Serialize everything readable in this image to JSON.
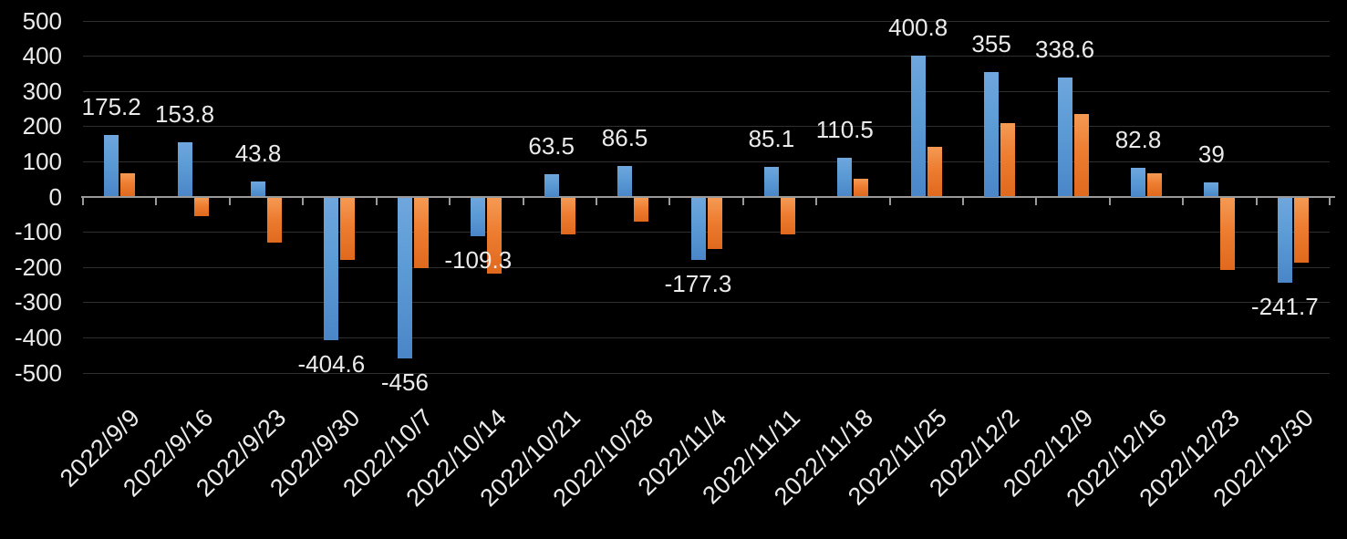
{
  "chart_data": {
    "type": "bar",
    "title": "",
    "xlabel": "",
    "ylabel": "",
    "categories": [
      "2022/9/9",
      "2022/9/16",
      "2022/9/23",
      "2022/9/30",
      "2022/10/7",
      "2022/10/14",
      "2022/10/21",
      "2022/10/28",
      "2022/11/4",
      "2022/11/11",
      "2022/11/18",
      "2022/11/25",
      "2022/12/2",
      "2022/12/9",
      "2022/12/16",
      "2022/12/23",
      "2022/12/30"
    ],
    "series": [
      {
        "name": "blue-series",
        "color": "#5B9BD5",
        "values": [
          175.2,
          153.8,
          43.8,
          -404.6,
          -456,
          -109.3,
          63.5,
          86.5,
          -177.3,
          85.1,
          110.5,
          400.8,
          355,
          338.6,
          82.8,
          39,
          -241.7
        ],
        "data_labels": [
          "175.2",
          "153.8",
          "43.8",
          "-404.6",
          "-456",
          "-109.3",
          "63.5",
          "86.5",
          "-177.3",
          "85.1",
          "110.5",
          "400.8",
          "355",
          "338.6",
          "82.8",
          "39",
          "-241.7"
        ]
      },
      {
        "name": "orange-series",
        "color": "#ED7D31",
        "values": [
          65,
          -52,
          -129,
          -177,
          -201,
          -215,
          -104,
          -69,
          -145,
          -105,
          51,
          141,
          209,
          234,
          65,
          -205,
          -184
        ],
        "data_labels": []
      }
    ],
    "ylim": [
      -500,
      500
    ],
    "yticks": [
      500,
      400,
      300,
      200,
      100,
      0,
      -100,
      -200,
      -300,
      -400,
      -500
    ],
    "ytick_labels": [
      "500",
      "400",
      "300",
      "200",
      "100",
      "0",
      "-100",
      "-200",
      "-300",
      "-400",
      "-500"
    ],
    "grid": true,
    "legend": false,
    "x_labels_rotated": true,
    "colors": {
      "background": "#000000",
      "text": "#ebebeb",
      "gridline": "#2e2e2e",
      "axis_line": "#9a9a9a",
      "bar_blue": "#5B9BD5",
      "bar_orange": "#ED7D31"
    }
  }
}
